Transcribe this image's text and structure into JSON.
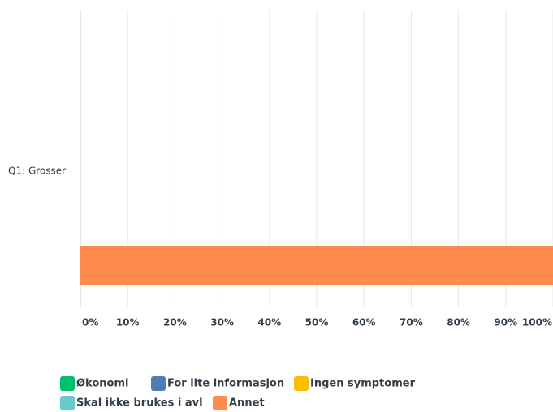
{
  "chart_data": {
    "type": "bar",
    "orientation": "horizontal",
    "categories": [
      "Q1: Grosser"
    ],
    "series": [
      {
        "name": "Økonomi",
        "color": "#00bf6f",
        "values": [
          0
        ]
      },
      {
        "name": "For lite informasjon",
        "color": "#507cb6",
        "values": [
          0
        ]
      },
      {
        "name": "Ingen symptomer",
        "color": "#f9be00",
        "values": [
          0
        ]
      },
      {
        "name": "Skal ikke brukes i avl",
        "color": "#6bc8cd",
        "values": [
          0
        ]
      },
      {
        "name": "Annet",
        "color": "#ff8b4f",
        "values": [
          100
        ]
      }
    ],
    "xlim": [
      0,
      100
    ],
    "xticks": [
      {
        "value": 0,
        "label": "0%"
      },
      {
        "value": 10,
        "label": "10%"
      },
      {
        "value": 20,
        "label": "20%"
      },
      {
        "value": 30,
        "label": "30%"
      },
      {
        "value": 40,
        "label": "40%"
      },
      {
        "value": 50,
        "label": "50%"
      },
      {
        "value": 60,
        "label": "60%"
      },
      {
        "value": 70,
        "label": "70%"
      },
      {
        "value": 80,
        "label": "80%"
      },
      {
        "value": 90,
        "label": "90%"
      },
      {
        "value": 100,
        "label": "100%"
      }
    ],
    "grid": true,
    "legend": "bottom"
  }
}
